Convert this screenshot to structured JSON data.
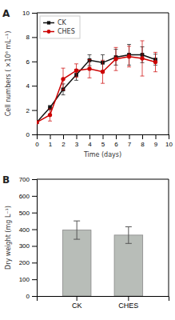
{
  "chart_data": [
    {
      "type": "line",
      "title": "A",
      "x": [
        0,
        1,
        2,
        3,
        4,
        5,
        6,
        7,
        8,
        9
      ],
      "xlabel": "Time (days)",
      "ylabel": "Cell numbers ( ×10⁶ mL⁻¹)",
      "xlim": [
        0,
        10
      ],
      "ylim": [
        0,
        10
      ],
      "xticks": [
        0,
        1,
        2,
        3,
        4,
        5,
        6,
        7,
        8,
        9,
        10
      ],
      "yticks": [
        0,
        2,
        4,
        6,
        8,
        10
      ],
      "series": [
        {
          "name": "CK",
          "color": "#111111",
          "marker": "square",
          "values": [
            1.0,
            2.2,
            3.7,
            4.9,
            6.1,
            5.9,
            6.35,
            6.55,
            6.55,
            6.15
          ],
          "errors": [
            0.08,
            0.18,
            0.45,
            0.45,
            0.45,
            0.65,
            0.65,
            0.85,
            0.65,
            0.45
          ]
        },
        {
          "name": "CHES",
          "color": "#cc0000",
          "marker": "circle",
          "values": [
            1.0,
            1.6,
            4.55,
            5.25,
            5.4,
            5.15,
            6.2,
            6.4,
            6.25,
            5.95
          ],
          "errors": [
            0.08,
            0.5,
            0.9,
            0.55,
            0.75,
            0.95,
            0.95,
            0.85,
            1.45,
            0.8
          ]
        }
      ],
      "legend": "upper left",
      "grid": false
    },
    {
      "type": "bar",
      "title": "B",
      "categories": [
        "CK",
        "CHES"
      ],
      "values": [
        395,
        365
      ],
      "errors": [
        55,
        50
      ],
      "color": "#b8bdb8",
      "ylabel": "Dry weight (mg L⁻¹)",
      "ylim": [
        0,
        700
      ],
      "yticks": [
        0,
        100,
        200,
        300,
        400,
        500,
        600,
        700
      ],
      "grid": false
    }
  ]
}
